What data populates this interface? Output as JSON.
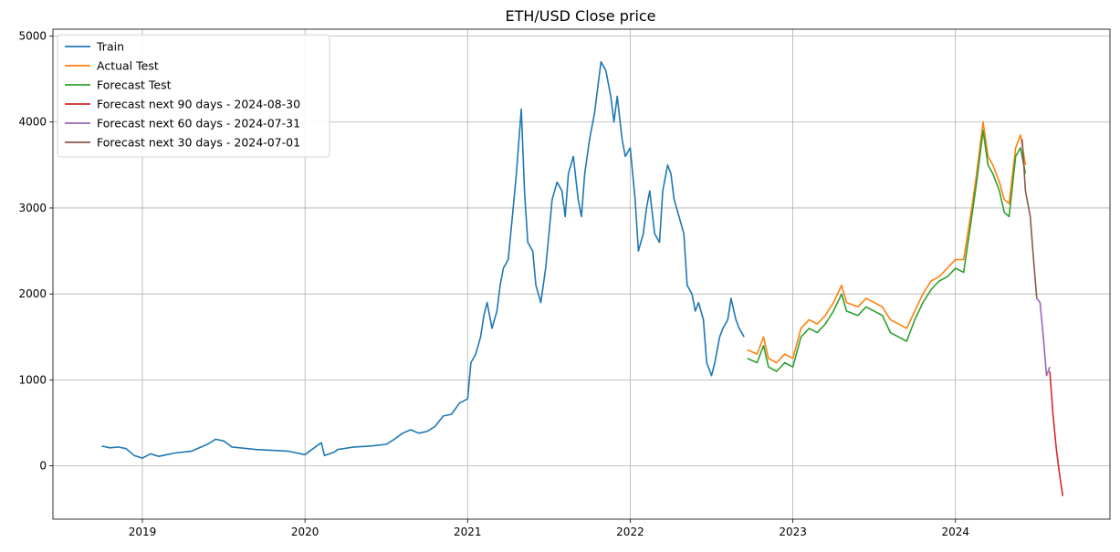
{
  "chart_data": {
    "type": "line",
    "title": "ETH/USD Close price",
    "xlabel": "",
    "ylabel": "",
    "xlim": [
      2018.45,
      2024.95
    ],
    "ylim": [
      -620,
      5080
    ],
    "x_ticks": [
      2019,
      2020,
      2021,
      2022,
      2023,
      2024
    ],
    "x_tick_labels": [
      "2019",
      "2020",
      "2021",
      "2022",
      "2023",
      "2024"
    ],
    "y_ticks": [
      0,
      1000,
      2000,
      3000,
      4000,
      5000
    ],
    "y_tick_labels": [
      "0",
      "1000",
      "2000",
      "3000",
      "4000",
      "5000"
    ],
    "grid": true,
    "legend_position": "top-left",
    "series": [
      {
        "name": "Train",
        "color": "#1f77b4",
        "x": [
          2018.75,
          2018.8,
          2018.85,
          2018.9,
          2018.95,
          2019.0,
          2019.05,
          2019.1,
          2019.15,
          2019.2,
          2019.3,
          2019.4,
          2019.45,
          2019.5,
          2019.55,
          2019.6,
          2019.7,
          2019.8,
          2019.9,
          2020.0,
          2020.05,
          2020.1,
          2020.12,
          2020.18,
          2020.2,
          2020.3,
          2020.4,
          2020.5,
          2020.55,
          2020.6,
          2020.65,
          2020.7,
          2020.75,
          2020.8,
          2020.85,
          2020.9,
          2020.95,
          2021.0,
          2021.02,
          2021.05,
          2021.08,
          2021.1,
          2021.12,
          2021.15,
          2021.18,
          2021.2,
          2021.22,
          2021.25,
          2021.28,
          2021.3,
          2021.33,
          2021.35,
          2021.37,
          2021.4,
          2021.42,
          2021.45,
          2021.48,
          2021.5,
          2021.52,
          2021.55,
          2021.58,
          2021.6,
          2021.62,
          2021.65,
          2021.68,
          2021.7,
          2021.72,
          2021.75,
          2021.78,
          2021.8,
          2021.82,
          2021.85,
          2021.88,
          2021.9,
          2021.92,
          2021.95,
          2021.97,
          2022.0,
          2022.03,
          2022.05,
          2022.08,
          2022.1,
          2022.12,
          2022.15,
          2022.18,
          2022.2,
          2022.23,
          2022.25,
          2022.27,
          2022.3,
          2022.33,
          2022.35,
          2022.38,
          2022.4,
          2022.42,
          2022.45,
          2022.47,
          2022.5,
          2022.52,
          2022.55,
          2022.57,
          2022.6,
          2022.62,
          2022.65,
          2022.67,
          2022.7
        ],
        "y": [
          230,
          210,
          220,
          200,
          120,
          90,
          140,
          110,
          130,
          150,
          170,
          250,
          310,
          290,
          220,
          210,
          190,
          180,
          170,
          130,
          200,
          270,
          120,
          160,
          190,
          220,
          230,
          250,
          310,
          380,
          420,
          380,
          400,
          460,
          580,
          600,
          730,
          780,
          1200,
          1300,
          1500,
          1750,
          1900,
          1600,
          1800,
          2100,
          2300,
          2400,
          3000,
          3400,
          4150,
          3200,
          2600,
          2500,
          2100,
          1900,
          2300,
          2700,
          3100,
          3300,
          3200,
          2900,
          3400,
          3600,
          3100,
          2900,
          3400,
          3800,
          4100,
          4400,
          4700,
          4600,
          4300,
          4000,
          4300,
          3800,
          3600,
          3700,
          3100,
          2500,
          2700,
          3000,
          3200,
          2700,
          2600,
          3200,
          3500,
          3400,
          3100,
          2900,
          2700,
          2100,
          2000,
          1800,
          1900,
          1700,
          1200,
          1050,
          1200,
          1500,
          1600,
          1700,
          1950,
          1700,
          1600,
          1500
        ]
      },
      {
        "name": "Actual Test",
        "color": "#ff7f0e",
        "x": [
          2022.72,
          2022.78,
          2022.82,
          2022.85,
          2022.9,
          2022.95,
          2023.0,
          2023.05,
          2023.1,
          2023.15,
          2023.2,
          2023.25,
          2023.3,
          2023.33,
          2023.4,
          2023.45,
          2023.5,
          2023.55,
          2023.6,
          2023.65,
          2023.7,
          2023.75,
          2023.8,
          2023.85,
          2023.9,
          2023.95,
          2024.0,
          2024.05,
          2024.1,
          2024.13,
          2024.17,
          2024.2,
          2024.23,
          2024.27,
          2024.3,
          2024.33,
          2024.37,
          2024.4,
          2024.43
        ],
        "y": [
          1350,
          1300,
          1500,
          1250,
          1200,
          1300,
          1250,
          1600,
          1700,
          1650,
          1750,
          1900,
          2100,
          1900,
          1850,
          1950,
          1900,
          1850,
          1700,
          1650,
          1600,
          1800,
          2000,
          2150,
          2200,
          2300,
          2400,
          2400,
          3000,
          3400,
          4000,
          3600,
          3500,
          3300,
          3100,
          3050,
          3700,
          3850,
          3500
        ]
      },
      {
        "name": "Forecast Test",
        "color": "#2ca02c",
        "x": [
          2022.72,
          2022.78,
          2022.82,
          2022.85,
          2022.9,
          2022.95,
          2023.0,
          2023.05,
          2023.1,
          2023.15,
          2023.2,
          2023.25,
          2023.3,
          2023.33,
          2023.4,
          2023.45,
          2023.5,
          2023.55,
          2023.6,
          2023.65,
          2023.7,
          2023.75,
          2023.8,
          2023.85,
          2023.9,
          2023.95,
          2024.0,
          2024.05,
          2024.1,
          2024.13,
          2024.17,
          2024.2,
          2024.23,
          2024.27,
          2024.3,
          2024.33,
          2024.37,
          2024.4,
          2024.43
        ],
        "y": [
          1250,
          1200,
          1400,
          1150,
          1100,
          1200,
          1150,
          1500,
          1600,
          1550,
          1650,
          1800,
          2000,
          1800,
          1750,
          1850,
          1800,
          1750,
          1550,
          1500,
          1450,
          1700,
          1900,
          2050,
          2150,
          2200,
          2300,
          2250,
          2900,
          3300,
          3900,
          3500,
          3400,
          3200,
          2950,
          2900,
          3600,
          3700,
          3400
        ]
      },
      {
        "name": "Forecast next 90 days - 2024-08-30",
        "color": "#d62728",
        "x": [
          2024.58,
          2024.6,
          2024.62,
          2024.64,
          2024.66
        ],
        "y": [
          1100,
          600,
          200,
          -100,
          -350
        ]
      },
      {
        "name": "Forecast next 60 days - 2024-07-31",
        "color": "#9467bd",
        "x": [
          2024.5,
          2024.52,
          2024.54,
          2024.56,
          2024.58
        ],
        "y": [
          1950,
          1900,
          1500,
          1050,
          1150
        ]
      },
      {
        "name": "Forecast next 30 days - 2024-07-01",
        "color": "#8c564b",
        "x": [
          2024.41,
          2024.43,
          2024.46,
          2024.48,
          2024.5
        ],
        "y": [
          3800,
          3200,
          2900,
          2400,
          1950
        ]
      }
    ]
  }
}
